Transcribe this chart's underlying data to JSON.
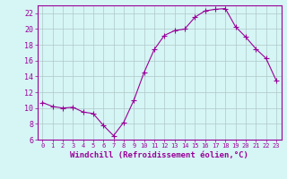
{
  "x": [
    0,
    1,
    2,
    3,
    4,
    5,
    6,
    7,
    8,
    9,
    10,
    11,
    12,
    13,
    14,
    15,
    16,
    17,
    18,
    19,
    20,
    21,
    22,
    23
  ],
  "y": [
    10.7,
    10.2,
    10.0,
    10.1,
    9.5,
    9.3,
    7.8,
    6.5,
    8.2,
    11.0,
    14.5,
    17.4,
    19.2,
    19.8,
    20.0,
    21.5,
    22.3,
    22.5,
    22.6,
    20.3,
    19.0,
    17.5,
    16.3,
    13.5
  ],
  "line_color": "#990099",
  "marker": "+",
  "marker_size": 4,
  "bg_color": "#d6f5f5",
  "grid_color": "#b0c8c8",
  "xlabel": "Windchill (Refroidissement éolien,°C)",
  "ylabel": "",
  "xlim": [
    -0.5,
    23.5
  ],
  "ylim": [
    6,
    23
  ],
  "xticks": [
    0,
    1,
    2,
    3,
    4,
    5,
    6,
    7,
    8,
    9,
    10,
    11,
    12,
    13,
    14,
    15,
    16,
    17,
    18,
    19,
    20,
    21,
    22,
    23
  ],
  "yticks": [
    6,
    8,
    10,
    12,
    14,
    16,
    18,
    20,
    22
  ],
  "tick_color": "#990099",
  "label_color": "#990099",
  "axis_color": "#990099",
  "xtick_fontsize": 5.0,
  "ytick_fontsize": 6.0,
  "xlabel_fontsize": 6.5
}
